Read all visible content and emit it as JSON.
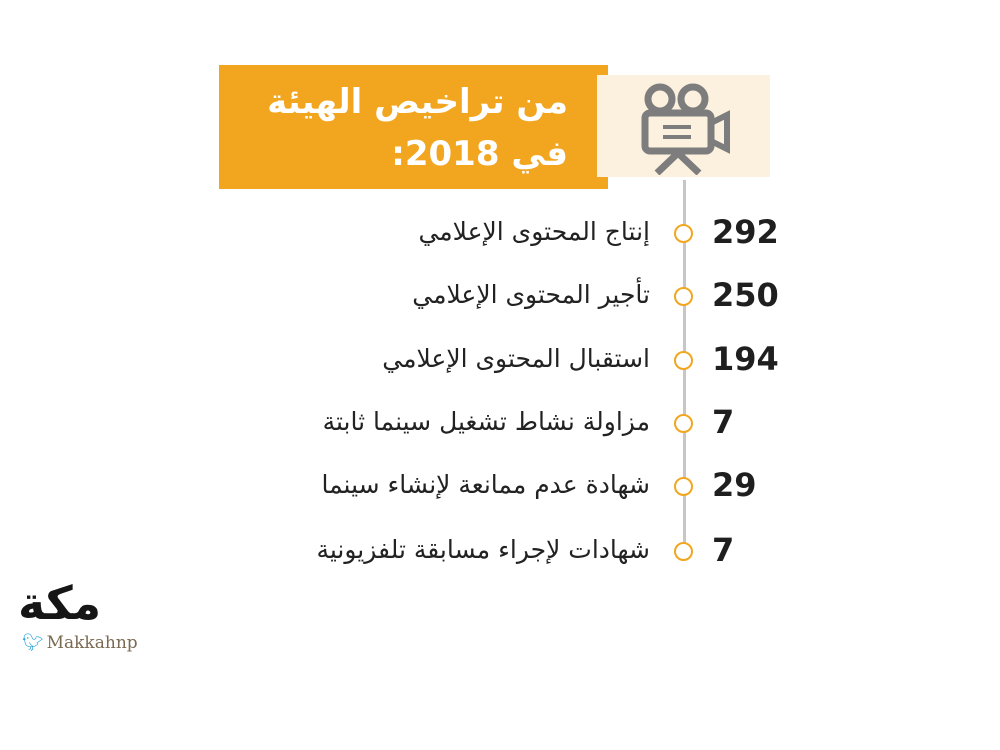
{
  "header": {
    "line1": "من تراخيص الهيئة",
    "line2": "في 2018:",
    "icon": "film-camera-icon",
    "accent_color": "#f2a61f",
    "icon_bg_color": "#fcf0de",
    "icon_color": "#7d7d7d"
  },
  "items": [
    {
      "label": "إنتاج المحتوى الإعلامي",
      "value": "292"
    },
    {
      "label": "تأجير المحتوى الإعلامي",
      "value": "250"
    },
    {
      "label": "استقبال المحتوى الإعلامي",
      "value": "194"
    },
    {
      "label": "مزاولة نشاط تشغيل سينما ثابتة",
      "value": "7"
    },
    {
      "label": "شهادة عدم ممانعة لإنشاء سينما",
      "value": "29"
    },
    {
      "label": "شهادات لإجراء مسابقة تلفزيونية",
      "value": "7"
    }
  ],
  "logo": {
    "name": "مكة",
    "handle": "Makkahnp",
    "icon": "twitter-bird-icon"
  }
}
